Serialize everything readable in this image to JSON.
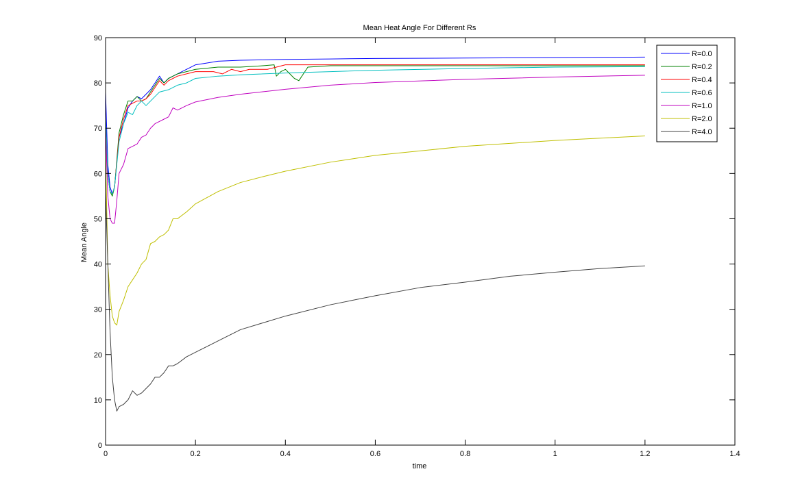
{
  "chart_data": {
    "type": "line",
    "title": "Mean Heat Angle For Different Rs",
    "xlabel": "time",
    "ylabel": "Mean Angle",
    "xlim": [
      0,
      1.4
    ],
    "ylim": [
      0,
      90
    ],
    "x_ticks": [
      "0",
      "0.2",
      "0.4",
      "0.6",
      "0.8",
      "1",
      "1.2",
      "1.4"
    ],
    "y_ticks": [
      "0",
      "10",
      "20",
      "30",
      "40",
      "50",
      "60",
      "70",
      "80",
      "90"
    ],
    "grid": false,
    "legend_position": "top-right",
    "series": [
      {
        "name": "R=0.0",
        "color": "#0000ff",
        "x": [
          0,
          0.005,
          0.01,
          0.015,
          0.02,
          0.03,
          0.04,
          0.05,
          0.06,
          0.07,
          0.08,
          0.09,
          0.1,
          0.11,
          0.12,
          0.13,
          0.14,
          0.15,
          0.16,
          0.17,
          0.18,
          0.2,
          0.22,
          0.25,
          0.3,
          0.4,
          0.5,
          0.6,
          0.8,
          1.0,
          1.2
        ],
        "y": [
          78,
          62,
          57,
          55.5,
          57,
          68,
          71,
          74.5,
          76,
          77,
          76.5,
          77.5,
          78.5,
          80,
          81.5,
          80,
          81,
          81.5,
          82,
          82.5,
          83,
          84,
          84.3,
          84.8,
          85,
          85.2,
          85.3,
          85.4,
          85.5,
          85.6,
          85.7
        ]
      },
      {
        "name": "R=0.2",
        "color": "#008000",
        "x": [
          0,
          0.005,
          0.01,
          0.015,
          0.02,
          0.03,
          0.04,
          0.05,
          0.06,
          0.07,
          0.08,
          0.09,
          0.1,
          0.11,
          0.12,
          0.13,
          0.14,
          0.15,
          0.16,
          0.18,
          0.2,
          0.25,
          0.3,
          0.35,
          0.375,
          0.38,
          0.39,
          0.4,
          0.42,
          0.43,
          0.45,
          0.5,
          0.6,
          0.8,
          1.0,
          1.2
        ],
        "y": [
          72,
          60,
          56,
          55,
          57,
          69,
          73,
          76,
          76,
          77,
          76,
          76.5,
          78,
          79.5,
          81,
          80,
          81,
          81.5,
          82,
          82.5,
          83,
          83.5,
          83.5,
          83.8,
          84,
          81.5,
          82.5,
          83,
          81,
          80.5,
          83.5,
          83.8,
          83.8,
          83.8,
          83.8,
          83.8
        ]
      },
      {
        "name": "R=0.4",
        "color": "#ff0000",
        "x": [
          0,
          0.005,
          0.01,
          0.015,
          0.02,
          0.03,
          0.04,
          0.05,
          0.06,
          0.07,
          0.08,
          0.09,
          0.1,
          0.11,
          0.12,
          0.13,
          0.14,
          0.15,
          0.16,
          0.18,
          0.2,
          0.22,
          0.24,
          0.26,
          0.28,
          0.3,
          0.32,
          0.34,
          0.36,
          0.38,
          0.4,
          0.5,
          0.6,
          0.8,
          1.0,
          1.2
        ],
        "y": [
          71,
          60,
          56,
          55.5,
          57,
          68,
          72,
          75,
          75.5,
          76,
          76,
          76.5,
          77.5,
          79,
          80.5,
          79.5,
          80.5,
          81,
          81.5,
          82,
          82.5,
          82.5,
          82.5,
          82,
          83,
          82.5,
          83,
          83,
          83,
          83.5,
          84,
          84,
          84,
          84,
          84,
          84
        ]
      },
      {
        "name": "R=0.6",
        "color": "#00bfbf",
        "x": [
          0,
          0.005,
          0.01,
          0.015,
          0.02,
          0.03,
          0.04,
          0.05,
          0.06,
          0.07,
          0.08,
          0.09,
          0.1,
          0.12,
          0.14,
          0.16,
          0.18,
          0.2,
          0.25,
          0.3,
          0.4,
          0.5,
          0.6,
          0.8,
          1.0,
          1.2
        ],
        "y": [
          72,
          60,
          56,
          55.5,
          57,
          67,
          71,
          73.5,
          73,
          75,
          76,
          75,
          76,
          78,
          78.5,
          79.5,
          80,
          81,
          81.5,
          81.8,
          82.2,
          82.5,
          82.8,
          83.2,
          83.5,
          83.6
        ]
      },
      {
        "name": "R=1.0",
        "color": "#bf00bf",
        "x": [
          0,
          0.005,
          0.01,
          0.015,
          0.02,
          0.025,
          0.03,
          0.04,
          0.05,
          0.06,
          0.07,
          0.08,
          0.09,
          0.1,
          0.11,
          0.12,
          0.13,
          0.14,
          0.15,
          0.16,
          0.18,
          0.2,
          0.25,
          0.3,
          0.4,
          0.5,
          0.6,
          0.8,
          1.0,
          1.2
        ],
        "y": [
          70,
          55,
          50,
          49,
          49,
          54,
          60,
          62,
          65.5,
          66,
          66.5,
          68,
          68.5,
          70,
          71,
          71.5,
          72,
          72.5,
          74.5,
          74,
          75,
          75.8,
          76.8,
          77.5,
          78.6,
          79.5,
          80.1,
          80.8,
          81.3,
          81.7
        ]
      },
      {
        "name": "R=2.0",
        "color": "#bfbf00",
        "x": [
          0,
          0.005,
          0.01,
          0.015,
          0.02,
          0.025,
          0.03,
          0.04,
          0.05,
          0.06,
          0.07,
          0.08,
          0.09,
          0.1,
          0.11,
          0.12,
          0.13,
          0.14,
          0.15,
          0.16,
          0.18,
          0.2,
          0.25,
          0.3,
          0.35,
          0.4,
          0.5,
          0.6,
          0.8,
          1.0,
          1.2
        ],
        "y": [
          65,
          40,
          33,
          28.5,
          27,
          26.5,
          29.5,
          32,
          35,
          36.5,
          38,
          40,
          41,
          44.5,
          45,
          46,
          46.5,
          47.5,
          50,
          50,
          51.5,
          53.3,
          56,
          58,
          59.3,
          60.5,
          62.5,
          64,
          66,
          67.3,
          68.3
        ]
      },
      {
        "name": "R=4.0",
        "color": "#404040",
        "x": [
          0,
          0.005,
          0.01,
          0.015,
          0.02,
          0.025,
          0.03,
          0.04,
          0.05,
          0.06,
          0.07,
          0.08,
          0.09,
          0.1,
          0.11,
          0.12,
          0.13,
          0.14,
          0.15,
          0.16,
          0.18,
          0.2,
          0.25,
          0.3,
          0.35,
          0.4,
          0.5,
          0.6,
          0.7,
          0.8,
          0.9,
          1.0,
          1.1,
          1.2
        ],
        "y": [
          56,
          40,
          25,
          15,
          10,
          7.5,
          8.5,
          9,
          10,
          12,
          11,
          11.5,
          12.5,
          13.5,
          15,
          15,
          16,
          17.5,
          17.5,
          18,
          19.5,
          20.5,
          23,
          25.5,
          27,
          28.5,
          31,
          33,
          34.8,
          36,
          37.3,
          38.2,
          39,
          39.6
        ]
      }
    ]
  }
}
